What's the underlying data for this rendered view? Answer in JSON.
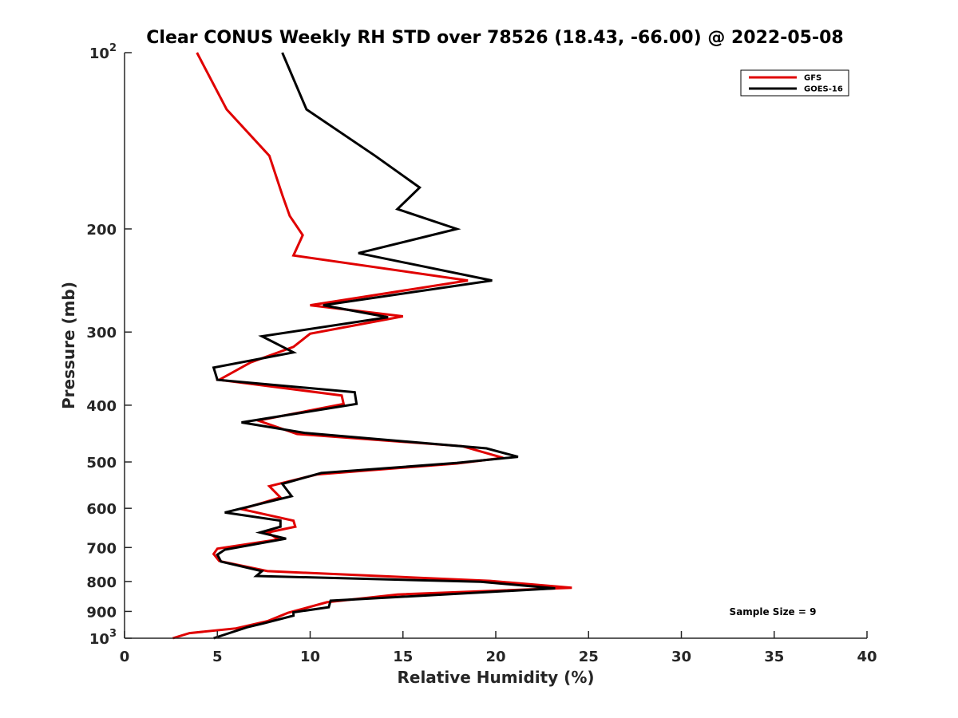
{
  "chart_data": {
    "type": "line",
    "title": "Clear CONUS Weekly RH STD over 78526 (18.43, -66.00) @ 2022-05-08",
    "xlabel": "Relative Humidity (%)",
    "ylabel": "Pressure (mb)",
    "xlim": [
      0,
      40
    ],
    "ylim": [
      100,
      1000
    ],
    "y_scale": "log",
    "y_reversed": true,
    "xticks": [
      0,
      5,
      10,
      15,
      20,
      25,
      30,
      35,
      40
    ],
    "yticks": [
      {
        "value": 100,
        "label": "10",
        "exp": "2"
      },
      {
        "value": 200,
        "label": "200"
      },
      {
        "value": 300,
        "label": "300"
      },
      {
        "value": 400,
        "label": "400"
      },
      {
        "value": 500,
        "label": "500"
      },
      {
        "value": 600,
        "label": "600"
      },
      {
        "value": 700,
        "label": "700"
      },
      {
        "value": 800,
        "label": "800"
      },
      {
        "value": 900,
        "label": "900"
      },
      {
        "value": 1000,
        "label": "10",
        "exp": "3"
      }
    ],
    "grid": false,
    "legend_position": "top-right",
    "annotation": "Sample Size = 9",
    "series": [
      {
        "name": "GFS",
        "color": "#e00000",
        "points": [
          [
            3.9,
            100
          ],
          [
            5.5,
            125
          ],
          [
            7.8,
            150
          ],
          [
            8.5,
            175
          ],
          [
            8.9,
            190
          ],
          [
            9.6,
            205
          ],
          [
            9.1,
            222
          ],
          [
            18.5,
            245
          ],
          [
            10.0,
            270
          ],
          [
            15.0,
            282
          ],
          [
            10.0,
            302
          ],
          [
            9.1,
            318
          ],
          [
            6.8,
            338
          ],
          [
            5.1,
            362
          ],
          [
            11.7,
            385
          ],
          [
            11.8,
            398
          ],
          [
            7.2,
            425
          ],
          [
            9.3,
            448
          ],
          [
            18.2,
            470
          ],
          [
            20.4,
            492
          ],
          [
            17.9,
            503
          ],
          [
            10.4,
            525
          ],
          [
            7.8,
            550
          ],
          [
            8.4,
            575
          ],
          [
            6.3,
            602
          ],
          [
            9.1,
            630
          ],
          [
            9.2,
            645
          ],
          [
            7.7,
            660
          ],
          [
            8.3,
            678
          ],
          [
            5.0,
            703
          ],
          [
            4.8,
            718
          ],
          [
            5.1,
            738
          ],
          [
            7.7,
            768
          ],
          [
            19.7,
            798
          ],
          [
            24.1,
            820
          ],
          [
            14.7,
            842
          ],
          [
            10.9,
            868
          ],
          [
            8.8,
            905
          ],
          [
            7.7,
            935
          ],
          [
            6.0,
            962
          ],
          [
            3.5,
            980
          ],
          [
            2.6,
            1000
          ]
        ]
      },
      {
        "name": "GOES-16",
        "color": "#000000",
        "points": [
          [
            8.5,
            100
          ],
          [
            9.8,
            125
          ],
          [
            13.5,
            150
          ],
          [
            15.9,
            170
          ],
          [
            14.7,
            185
          ],
          [
            17.9,
            200
          ],
          [
            12.6,
            220
          ],
          [
            19.8,
            245
          ],
          [
            10.7,
            270
          ],
          [
            14.2,
            283
          ],
          [
            7.4,
            305
          ],
          [
            9.1,
            325
          ],
          [
            4.8,
            345
          ],
          [
            5.0,
            362
          ],
          [
            12.4,
            380
          ],
          [
            12.5,
            398
          ],
          [
            6.3,
            428
          ],
          [
            9.7,
            446
          ],
          [
            19.5,
            474
          ],
          [
            21.2,
            490
          ],
          [
            17.9,
            502
          ],
          [
            10.6,
            522
          ],
          [
            8.5,
            545
          ],
          [
            9.0,
            572
          ],
          [
            5.4,
            610
          ],
          [
            8.4,
            630
          ],
          [
            8.4,
            645
          ],
          [
            7.3,
            660
          ],
          [
            8.7,
            676
          ],
          [
            5.4,
            706
          ],
          [
            5.0,
            720
          ],
          [
            5.2,
            740
          ],
          [
            7.4,
            768
          ],
          [
            7.1,
            783
          ],
          [
            19.2,
            801
          ],
          [
            23.2,
            822
          ],
          [
            11.1,
            863
          ],
          [
            11.0,
            885
          ],
          [
            9.1,
            903
          ],
          [
            9.1,
            915
          ],
          [
            7.5,
            943
          ],
          [
            6.6,
            958
          ],
          [
            4.8,
            1000
          ]
        ]
      }
    ]
  }
}
